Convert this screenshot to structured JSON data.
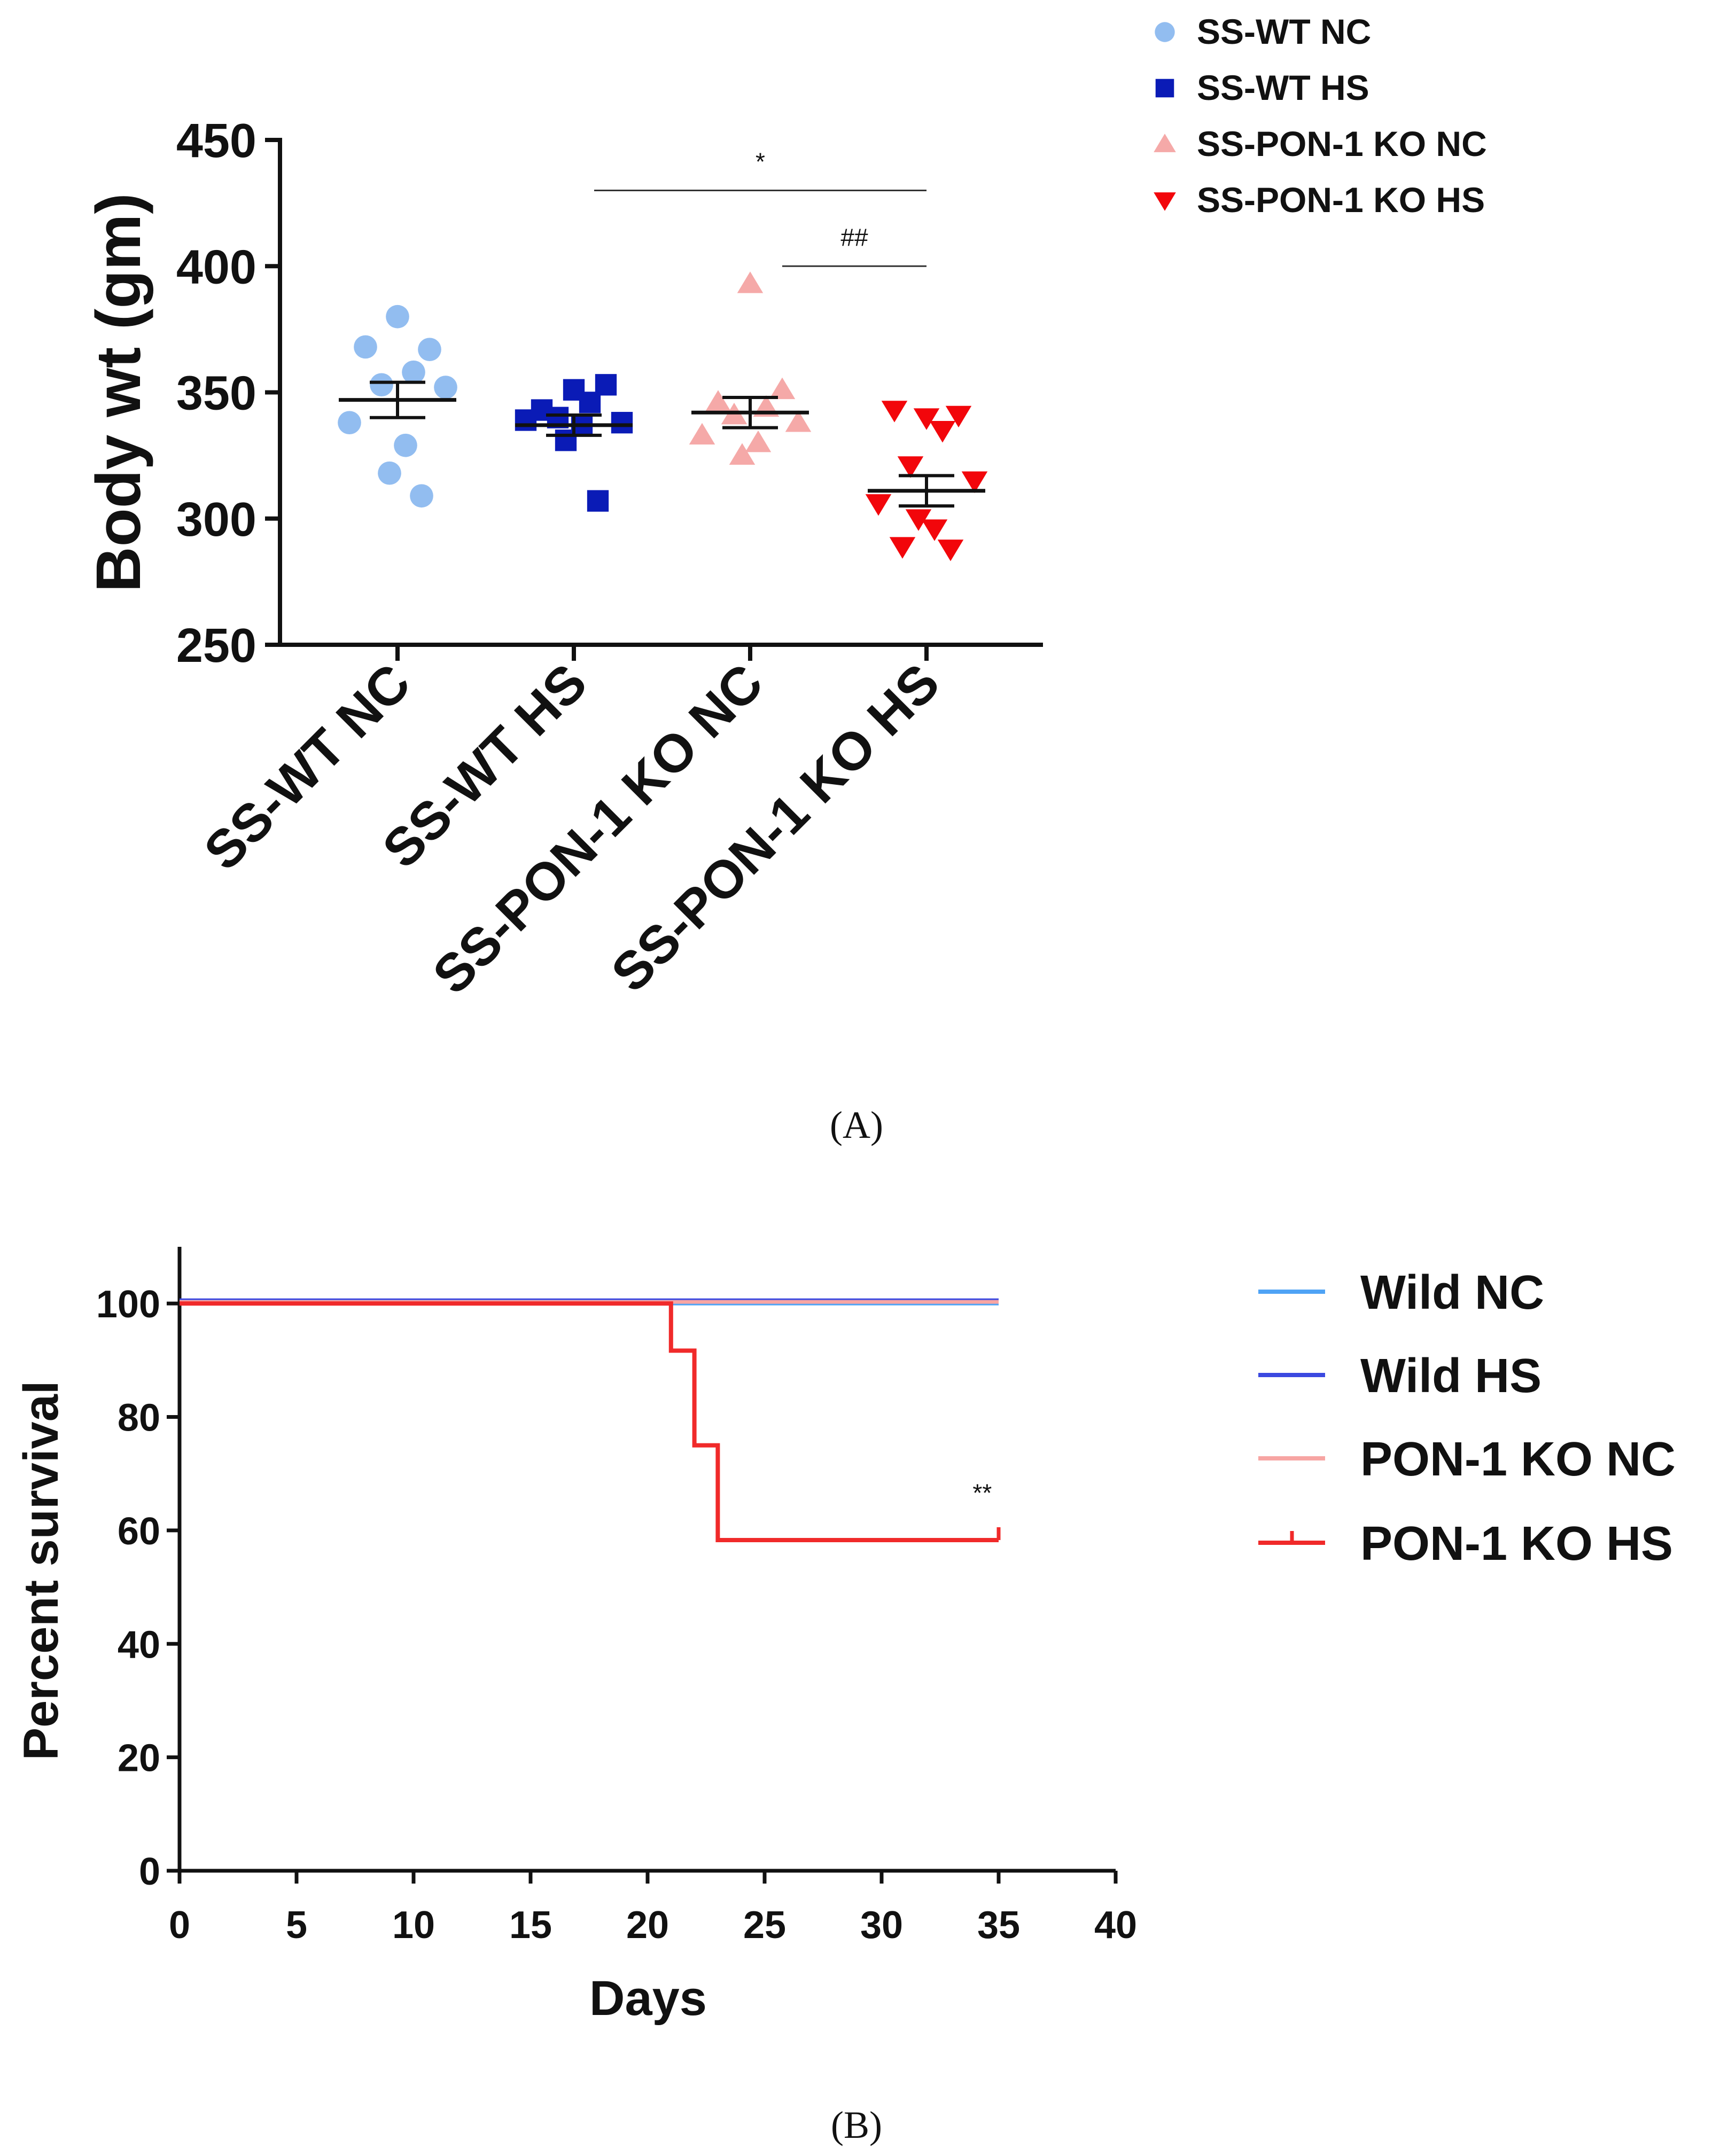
{
  "chart_data": [
    {
      "type": "scatter",
      "panel_label": "(A)",
      "ylabel": "Body wt (gm)",
      "ylim": [
        250,
        450
      ],
      "yticks": [
        250,
        300,
        350,
        400,
        450
      ],
      "categories": [
        "SS-WT NC",
        "SS-WT HS",
        "SS-PON-1 KO NC",
        "SS-PON-1 KO HS"
      ],
      "legend_position": "top-right",
      "series": [
        {
          "name": "SS-WT NC",
          "marker": "circle",
          "color": "#92bdf0",
          "values": [
            380,
            367,
            368,
            358,
            353,
            352,
            338,
            329,
            318,
            309
          ],
          "mean": 347,
          "sem": 7
        },
        {
          "name": "SS-WT HS",
          "marker": "square",
          "color": "#0a1bb6",
          "values": [
            351,
            353,
            343,
            346,
            340,
            338,
            339,
            337,
            331,
            307
          ],
          "mean": 337,
          "sem": 4
        },
        {
          "name": "SS-PON-1 KO NC",
          "marker": "triangle-up",
          "color": "#f5a9a8",
          "values": [
            393,
            351,
            346,
            344,
            341,
            338,
            333,
            330,
            325
          ],
          "mean": 342,
          "sem": 6
        },
        {
          "name": "SS-PON-1 KO HS",
          "marker": "triangle-down",
          "color": "#f2060b",
          "values": [
            340,
            341,
            343,
            335,
            321,
            315,
            306,
            296,
            300,
            288,
            289
          ],
          "mean": 311,
          "sem": 6
        }
      ],
      "annotations": [
        {
          "text": "*",
          "from": "SS-WT HS",
          "to": "SS-PON-1 KO HS",
          "y": 430
        },
        {
          "text": "##",
          "from": "SS-PON-1 KO NC",
          "to": "SS-PON-1 KO HS",
          "y": 400
        }
      ]
    },
    {
      "type": "line",
      "subtype": "step survival",
      "panel_label": "(B)",
      "xlabel": "Days",
      "ylabel": "Percent survival",
      "xlim": [
        0,
        40
      ],
      "ylim": [
        0,
        110
      ],
      "xticks": [
        0,
        5,
        10,
        15,
        20,
        25,
        30,
        35,
        40
      ],
      "yticks": [
        0,
        20,
        40,
        60,
        80,
        100
      ],
      "legend_position": "right",
      "series": [
        {
          "name": "Wild NC",
          "color": "#4fa3f5",
          "x": [
            0,
            35
          ],
          "y": [
            100,
            100
          ]
        },
        {
          "name": "Wild HS",
          "color": "#3b49e0",
          "x": [
            0,
            35
          ],
          "y": [
            100,
            100
          ]
        },
        {
          "name": "PON-1 KO NC",
          "color": "#f7a5a3",
          "x": [
            0,
            35
          ],
          "y": [
            100,
            100
          ]
        },
        {
          "name": "PON-1 KO HS",
          "color": "#f02a2a",
          "x": [
            0,
            21,
            22,
            23,
            35
          ],
          "y": [
            100,
            91.7,
            75,
            58.3,
            58.3
          ]
        }
      ],
      "annotation": {
        "text": "**",
        "x": 34.3,
        "y": 67
      }
    }
  ]
}
